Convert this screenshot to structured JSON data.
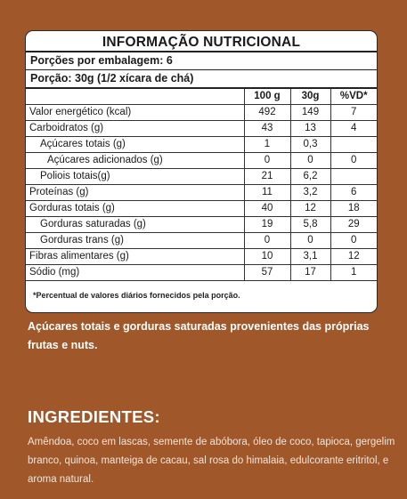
{
  "label": {
    "title": "INFORMAÇÃO NUTRICIONAL",
    "servings_per_package": "Porções por embalagem: 6",
    "serving_size": "Porção: 30g (1/2 xícara de chá)",
    "columns": [
      "100 g",
      "30g",
      "%VD*"
    ],
    "rows": [
      {
        "name": "Valor energético (kcal)",
        "indent": 0,
        "v100": "492",
        "vpor": "149",
        "vd": "7"
      },
      {
        "name": "Carboidratos (g)",
        "indent": 0,
        "v100": "43",
        "vpor": "13",
        "vd": "4"
      },
      {
        "name": "Açúcares totais (g)",
        "indent": 1,
        "v100": "1",
        "vpor": "0,3",
        "vd": ""
      },
      {
        "name": "Açúcares adicionados (g)",
        "indent": 2,
        "v100": "0",
        "vpor": "0",
        "vd": "0"
      },
      {
        "name": "Poliois totais(g)",
        "indent": 1,
        "v100": "21",
        "vpor": "6,2",
        "vd": ""
      },
      {
        "name": "Proteínas (g)",
        "indent": 0,
        "v100": "11",
        "vpor": "3,2",
        "vd": "6"
      },
      {
        "name": "Gorduras totais (g)",
        "indent": 0,
        "v100": "40",
        "vpor": "12",
        "vd": "18"
      },
      {
        "name": "Gorduras saturadas (g)",
        "indent": 1,
        "v100": "19",
        "vpor": "5,8",
        "vd": "29"
      },
      {
        "name": "Gorduras trans (g)",
        "indent": 1,
        "v100": "0",
        "vpor": "0",
        "vd": "0"
      },
      {
        "name": "Fibras alimentares (g)",
        "indent": 0,
        "v100": "10",
        "vpor": "3,1",
        "vd": "12"
      },
      {
        "name": "Sódio (mg)",
        "indent": 0,
        "v100": "57",
        "vpor": "17",
        "vd": "1"
      }
    ],
    "footnote": "*Percentual de valores diários fornecidos pela porção."
  },
  "note": "Açúcares totais e gorduras saturadas provenientes das próprias frutas e nuts.",
  "ingredients": {
    "title": "INGREDIENTES:",
    "text": "Amêndoa, coco em lascas, semente de abóbora, óleo de coco, tapioca, gergelim branco, quinoa, manteiga de cacau, sal rosa do himalaia, edulcorante eritritol, e aroma natural."
  },
  "colors": {
    "background": "#a0572a",
    "panel": "#ffffff",
    "text_dark": "#1a1a1a"
  }
}
